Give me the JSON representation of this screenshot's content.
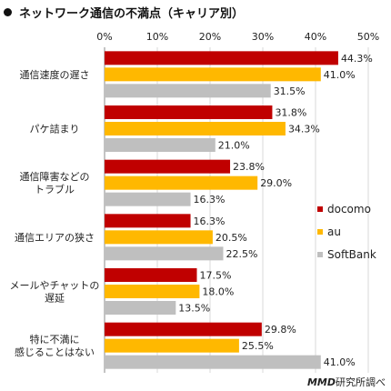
{
  "title": "ネットワーク通信の不満点（キャリア別）",
  "source_brand": "MMD",
  "source_rest": "研究所調べ",
  "chart_data": {
    "type": "bar",
    "orientation": "horizontal",
    "title": "ネットワーク通信の不満点（キャリア別）",
    "categories": [
      [
        "通信速度の遅さ"
      ],
      [
        "パケ詰まり"
      ],
      [
        "通信障害などの",
        "トラブル"
      ],
      [
        "通信エリアの狭さ"
      ],
      [
        "メールやチャットの",
        "遅延"
      ],
      [
        "特に不満に",
        "感じることはない"
      ]
    ],
    "series": [
      {
        "name": "docomo",
        "color": "#c00000",
        "values": [
          44.3,
          31.8,
          23.8,
          16.3,
          17.5,
          29.8
        ]
      },
      {
        "name": "au",
        "color": "#ffb800",
        "values": [
          41.0,
          34.3,
          29.0,
          20.5,
          18.0,
          25.5
        ]
      },
      {
        "name": "SoftBank",
        "color": "#bfbfbf",
        "values": [
          31.5,
          21.0,
          16.3,
          22.5,
          13.5,
          41.0
        ]
      }
    ],
    "xlim": [
      0,
      50
    ],
    "xticks": [
      0,
      10,
      20,
      30,
      40,
      50
    ],
    "tick_suffix": "%",
    "value_suffix": "%",
    "grid": true,
    "legend_position": "right"
  }
}
